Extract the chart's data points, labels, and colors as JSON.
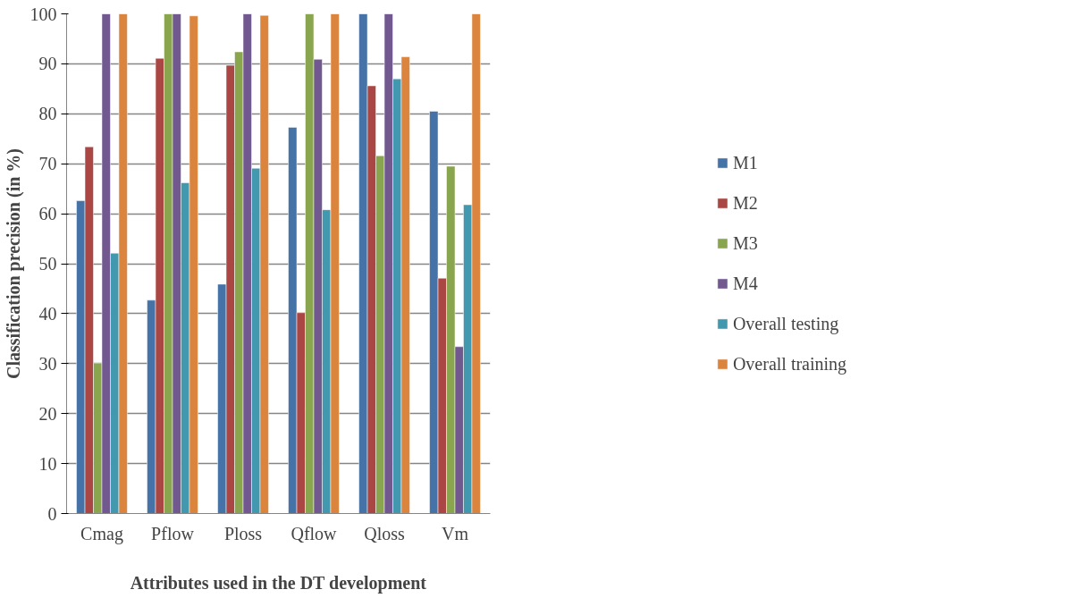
{
  "chart_data": {
    "type": "bar",
    "xlabel": "Attributes used in the DT development",
    "ylabel": "Classification precision (in %)",
    "categories": [
      "Cmag",
      "Pflow",
      "Ploss",
      "Qflow",
      "Qloss",
      "Vm"
    ],
    "series": [
      {
        "name": "M1",
        "color": "#4572a7",
        "values": [
          62.6,
          42.7,
          45.9,
          77.3,
          100,
          80.5
        ]
      },
      {
        "name": "M2",
        "color": "#aa4643",
        "values": [
          73.4,
          91.1,
          89.7,
          40.2,
          85.6,
          47.1
        ]
      },
      {
        "name": "M3",
        "color": "#89a54e",
        "values": [
          30.1,
          100,
          92.4,
          100,
          71.6,
          69.5
        ]
      },
      {
        "name": "M4",
        "color": "#71588f",
        "values": [
          100,
          100,
          100,
          90.9,
          100,
          33.4
        ]
      },
      {
        "name": "Overall testing",
        "color": "#4198af",
        "values": [
          52.1,
          66.2,
          69.1,
          60.8,
          87.0,
          61.8
        ]
      },
      {
        "name": "Overall training",
        "color": "#db843d",
        "values": [
          100,
          99.6,
          99.7,
          100,
          91.4,
          100
        ]
      }
    ],
    "ylim": [
      0,
      100
    ],
    "yticks": [
      0,
      10,
      20,
      30,
      40,
      50,
      60,
      70,
      80,
      90,
      100
    ],
    "grid": "y",
    "legend": "right"
  }
}
